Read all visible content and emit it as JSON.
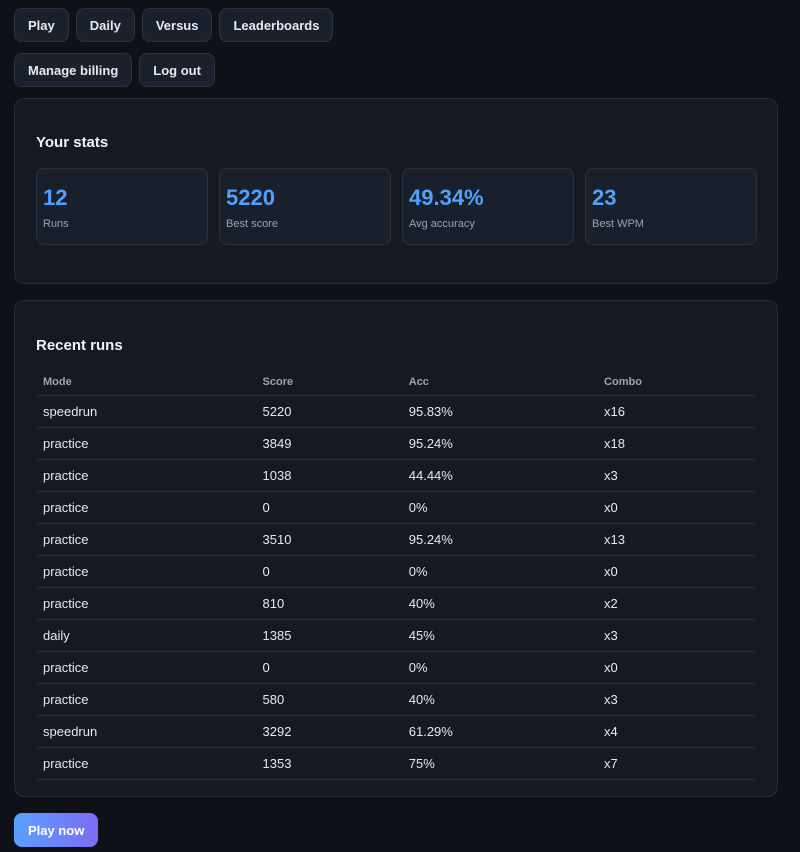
{
  "nav": {
    "row1": [
      "Play",
      "Daily",
      "Versus",
      "Leaderboards"
    ],
    "row2": [
      "Manage billing",
      "Log out"
    ]
  },
  "stats": {
    "title": "Your stats",
    "items": [
      {
        "value": "12",
        "label": "Runs"
      },
      {
        "value": "5220",
        "label": "Best score"
      },
      {
        "value": "49.34%",
        "label": "Avg accuracy"
      },
      {
        "value": "23",
        "label": "Best WPM"
      }
    ]
  },
  "recent_runs": {
    "title": "Recent runs",
    "columns": [
      "Mode",
      "Score",
      "Acc",
      "Combo"
    ],
    "rows": [
      [
        "speedrun",
        "5220",
        "95.83%",
        "x16"
      ],
      [
        "practice",
        "3849",
        "95.24%",
        "x18"
      ],
      [
        "practice",
        "1038",
        "44.44%",
        "x3"
      ],
      [
        "practice",
        "0",
        "0%",
        "x0"
      ],
      [
        "practice",
        "3510",
        "95.24%",
        "x13"
      ],
      [
        "practice",
        "0",
        "0%",
        "x0"
      ],
      [
        "practice",
        "810",
        "40%",
        "x2"
      ],
      [
        "daily",
        "1385",
        "45%",
        "x3"
      ],
      [
        "practice",
        "0",
        "0%",
        "x0"
      ],
      [
        "practice",
        "580",
        "40%",
        "x3"
      ],
      [
        "speedrun",
        "3292",
        "61.29%",
        "x4"
      ],
      [
        "practice",
        "1353",
        "75%",
        "x7"
      ]
    ]
  },
  "cta": "Play now"
}
